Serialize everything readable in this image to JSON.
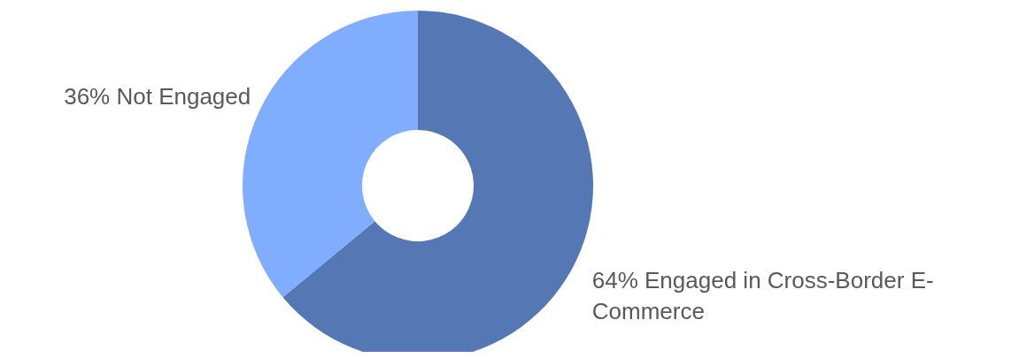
{
  "chart_data": {
    "type": "donut",
    "categories": [
      "Engaged in Cross-Border E-Commerce",
      "Not Engaged"
    ],
    "values": [
      64,
      36
    ],
    "colors": [
      "#5577b3",
      "#80adfe"
    ],
    "value_labels": [
      "64%",
      "36%"
    ]
  }
}
